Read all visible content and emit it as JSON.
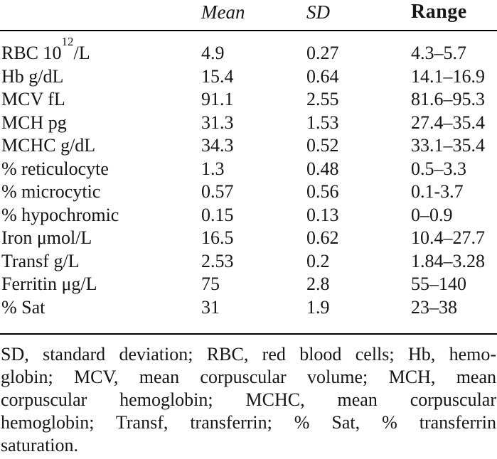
{
  "colors": {
    "background": "#ffffff",
    "text": "#161616",
    "rule": "#000000"
  },
  "table": {
    "headers": {
      "parameter": "",
      "mean": "Mean",
      "sd": "SD",
      "range": "Range"
    },
    "rows": [
      {
        "label": "RBC 10",
        "label_sup": "12",
        "label_post": "/L",
        "mean": "4.9",
        "sd": "0.27",
        "range": "4.3–5.7"
      },
      {
        "label": "Hb g/dL",
        "mean": "15.4",
        "sd": "0.64",
        "range": "14.1–16.9"
      },
      {
        "label": "MCV fL",
        "mean": "91.1",
        "sd": "2.55",
        "range": "81.6–95.3"
      },
      {
        "label": "MCH pg",
        "mean": "31.3",
        "sd": "1.53",
        "range": "27.4–35.4"
      },
      {
        "label": "MCHC g/dL",
        "mean": "34.3",
        "sd": "0.52",
        "range": "33.1–35.4"
      },
      {
        "label": "% reticulocyte",
        "mean": "1.3",
        "sd": "0.48",
        "range": "0.5–3.3"
      },
      {
        "label": "% microcytic",
        "mean": "0.57",
        "sd": "0.56",
        "range": "0.1-3.7"
      },
      {
        "label": "% hypochromic",
        "mean": "0.15",
        "sd": "0.13",
        "range": "0–0.9"
      },
      {
        "label": "Iron μmol/L",
        "mean": "16.5",
        "sd": "0.62",
        "range": "10.4–27.7"
      },
      {
        "label": "Transf g/L",
        "mean": "2.53",
        "sd": "0.2",
        "range": "1.84–3.28"
      },
      {
        "label": "Ferritin μg/L",
        "mean": "75",
        "sd": "2.8",
        "range": "55–140"
      },
      {
        "label": "% Sat",
        "mean": "31",
        "sd": "1.9",
        "range": "23–38"
      }
    ]
  },
  "footnote": {
    "lines": [
      "SD, standard deviation; RBC, red blood cells; Hb, hemo-",
      "globin; MCV, mean corpuscular volume; MCH, mean",
      "corpuscular hemoglobin; MCHC, mean corpuscular",
      "hemoglobin; Transf, transferrin; % Sat, % transferrin",
      "saturation."
    ],
    "full_text": "SD, standard deviation; RBC, red blood cells; Hb, hemoglobin; MCV, mean corpuscular volume; MCH, mean corpuscular hemoglobin; MCHC, mean corpuscular hemoglobin; Transf, transferrin; % Sat, % transferrin saturation."
  }
}
